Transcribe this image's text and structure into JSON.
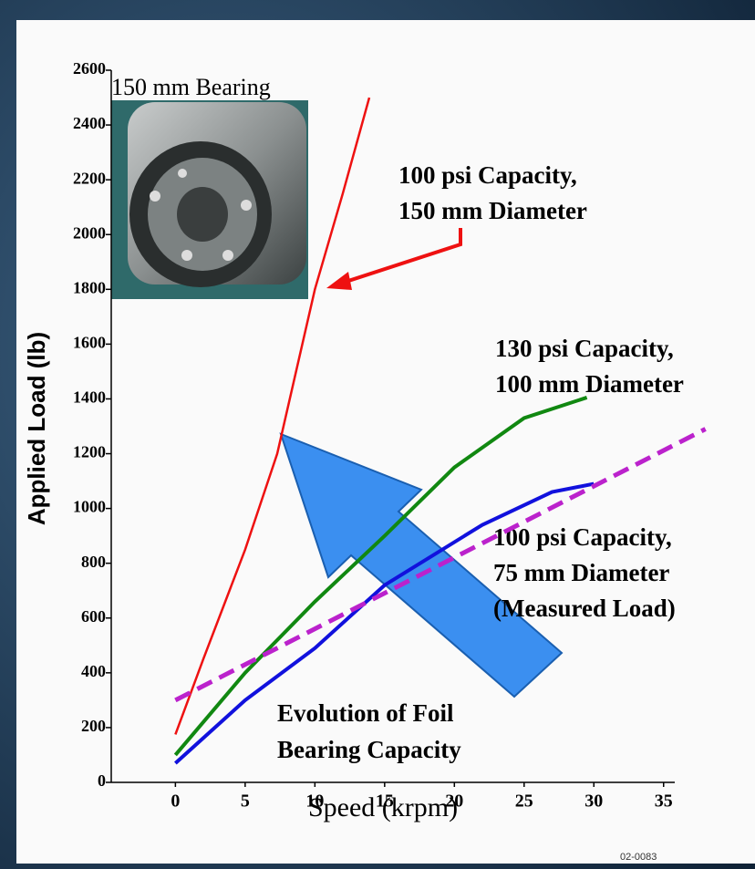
{
  "chart_data": {
    "type": "line",
    "photo_caption": "150 mm Bearing",
    "x_label": "Speed (krpm)",
    "y_label": "Applied Load (lb)",
    "xlim": [
      -4.6,
      35.8
    ],
    "ylim": [
      0,
      2600
    ],
    "xticks": [
      0,
      5,
      10,
      15,
      20,
      25,
      30,
      35
    ],
    "yticks": [
      0,
      200,
      400,
      600,
      800,
      1000,
      1200,
      1400,
      1600,
      1800,
      2000,
      2200,
      2400,
      2600
    ],
    "series": [
      {
        "name": [
          "100 psi Capacity,",
          "150 mm Diameter"
        ],
        "color": "#ee1111",
        "x": [
          0,
          2,
          5,
          7.3,
          10,
          12,
          13.9
        ],
        "values": [
          175,
          450,
          850,
          1200,
          1800,
          2150,
          2500
        ]
      },
      {
        "name": [
          "130 psi Capacity,",
          "100 mm Diameter"
        ],
        "color": "#118811",
        "x": [
          0,
          5,
          10,
          15,
          20,
          25,
          29.5
        ],
        "values": [
          100,
          400,
          660,
          900,
          1150,
          1330,
          1405
        ]
      },
      {
        "name": [
          "100 psi Capacity,",
          "75 mm Diameter",
          "(Measured Load)"
        ],
        "color": "#1111dd",
        "x": [
          0,
          5,
          10,
          15,
          22,
          27,
          30
        ],
        "values": [
          70,
          300,
          490,
          720,
          940,
          1060,
          1090
        ]
      },
      {
        "color": "#bb22cc",
        "dashed": true,
        "x": [
          0,
          38
        ],
        "values": [
          300,
          1290
        ]
      }
    ],
    "annotation": [
      "Evolution of Foil",
      "Bearing Capacity"
    ],
    "figure_id": "02-0083"
  }
}
